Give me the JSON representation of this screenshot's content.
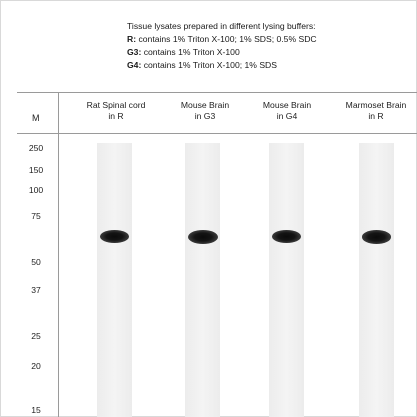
{
  "legend": {
    "title": "Tissue lysates prepared in different lysing buffers:",
    "lines": [
      {
        "key": "R:",
        "text": " contains 1% Triton X-100; 1% SDS; 0.5% SDC"
      },
      {
        "key": "G3:",
        "text": " contains 1% Triton X-100"
      },
      {
        "key": "G4:",
        "text": " contains 1% Triton X-100; 1% SDS"
      }
    ]
  },
  "marker_header": "M",
  "lanes": [
    {
      "line1": "Rat Spinal cord",
      "line2": "in R",
      "band_intensity": 0.85
    },
    {
      "line1": "Mouse Brain",
      "line2": "in G3",
      "band_intensity": 1.0
    },
    {
      "line1": "Mouse Brain",
      "line2": "in G4",
      "band_intensity": 0.85
    },
    {
      "line1": "Marmoset Brain",
      "line2": "in R",
      "band_intensity": 0.95
    }
  ],
  "markers": [
    "250",
    "150",
    "100",
    "75",
    "50",
    "37",
    "25",
    "20",
    "15"
  ],
  "band_size_kda": 63
}
